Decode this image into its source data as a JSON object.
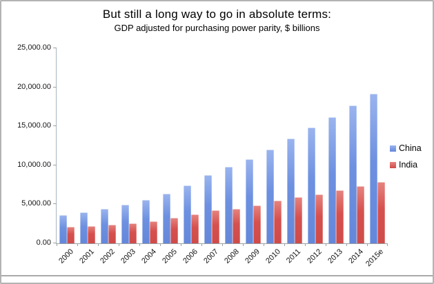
{
  "chart_data": {
    "type": "bar",
    "title": "But still a long way to go in absolute terms:",
    "subtitle": "GDP adjusted for purchasing power parity, $ billions",
    "categories": [
      "2000",
      "2001",
      "2002",
      "2003",
      "2004",
      "2005",
      "2006",
      "2007",
      "2008",
      "2009",
      "2010",
      "2011",
      "2012",
      "2013",
      "2014",
      "2015e"
    ],
    "series": [
      {
        "name": "China",
        "color": "#6d90e0",
        "color_top": "#9ab4ee",
        "color_bottom": "#6487da",
        "values": [
          3600,
          4000,
          4400,
          4950,
          5600,
          6400,
          7400,
          8750,
          9800,
          10800,
          12050,
          13400,
          14800,
          16200,
          17650,
          19200
        ]
      },
      {
        "name": "India",
        "color": "#d5504e",
        "color_top": "#e5847f",
        "color_bottom": "#cf4b49",
        "values": [
          2100,
          2250,
          2400,
          2600,
          2850,
          3250,
          3700,
          4200,
          4450,
          4850,
          5450,
          5900,
          6300,
          6800,
          7350,
          7900
        ]
      }
    ],
    "ylim": [
      0,
      25000
    ],
    "y_ticks": [
      {
        "value": 0,
        "label": "0.00"
      },
      {
        "value": 5000,
        "label": "5,000.00"
      },
      {
        "value": 10000,
        "label": "10,000.00"
      },
      {
        "value": 15000,
        "label": "15,000.00"
      },
      {
        "value": 20000,
        "label": "20,000.00"
      },
      {
        "value": 25000,
        "label": "25,000.00"
      }
    ],
    "grid": false,
    "legend_position": "right"
  }
}
